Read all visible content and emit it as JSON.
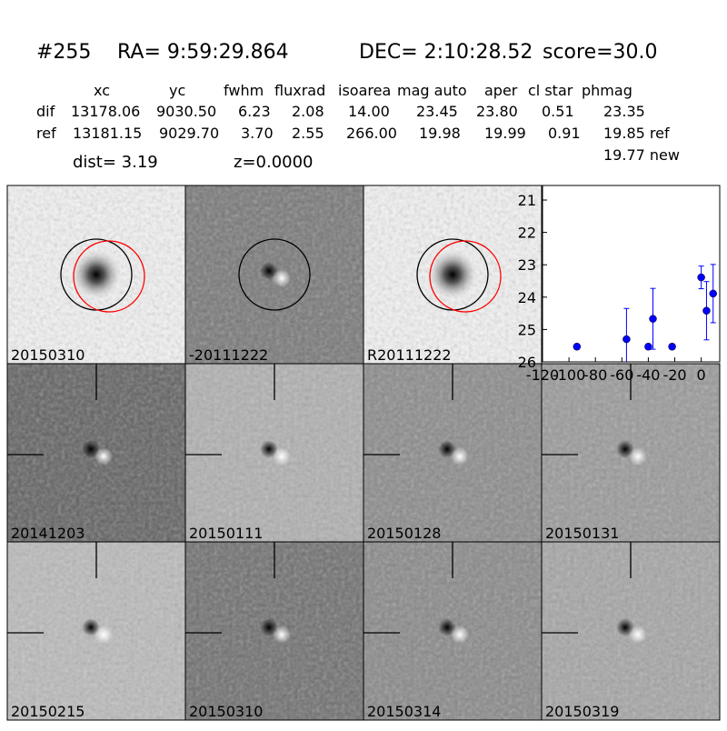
{
  "header": {
    "id": "#255",
    "ra": "RA= 9:59:29.864",
    "dec": "DEC= 2:10:28.52",
    "score": "score=30.0"
  },
  "table": {
    "columns": [
      "xc",
      "yc",
      "fwhm",
      "fluxrad",
      "isoarea",
      "mag auto",
      "aper",
      "cl star",
      "phmag"
    ],
    "rows": [
      {
        "label": "dif",
        "cells": [
          "13178.06",
          "9030.50",
          "6.23",
          "2.08",
          "14.00",
          "23.45",
          "23.80",
          "0.51",
          "23.35"
        ]
      },
      {
        "label": "ref",
        "cells": [
          "13181.15",
          "9029.70",
          "3.70",
          "2.55",
          "266.00",
          "19.98",
          "19.99",
          "0.91",
          "19.85 ref"
        ]
      }
    ],
    "note": "19.77 new"
  },
  "dist": "dist=  3.19",
  "z": "z=0.0000",
  "panels": [
    {
      "label": "20150310",
      "color": "#000000"
    },
    {
      "label": "-20111222",
      "color": "#000000"
    },
    {
      "label": "R20111222",
      "color": "#000000"
    },
    {
      "label": "20141203",
      "color": "#000000"
    },
    {
      "label": "20150111",
      "color": "#000000"
    },
    {
      "label": "20150128",
      "color": "#000000"
    },
    {
      "label": "20150131",
      "color": "#000000"
    },
    {
      "label": "20150215",
      "color": "#000000"
    },
    {
      "label": "20150310",
      "color": "#ff0000"
    },
    {
      "label": "20150314",
      "color": "#000000"
    },
    {
      "label": "20150319",
      "color": "#000000"
    }
  ],
  "chart_data": {
    "type": "scatter",
    "color": "#0000ff",
    "x": [
      -94,
      -56.5,
      -40,
      -36.5,
      -22,
      0,
      4,
      9
    ],
    "y": [
      25.53,
      25.3,
      25.53,
      24.67,
      25.53,
      23.39,
      24.42,
      23.89
    ],
    "err": [
      0.08,
      0.95,
      0.08,
      0.94,
      0.08,
      0.35,
      0.9,
      0.9
    ],
    "xlim": [
      -120,
      14
    ],
    "ylim": [
      20.55,
      26
    ],
    "y_inverted": true,
    "xticks": [
      -120,
      -100,
      -80,
      -60,
      -40,
      -20,
      0
    ],
    "yticks": [
      21,
      22,
      23,
      24,
      25,
      26
    ]
  }
}
